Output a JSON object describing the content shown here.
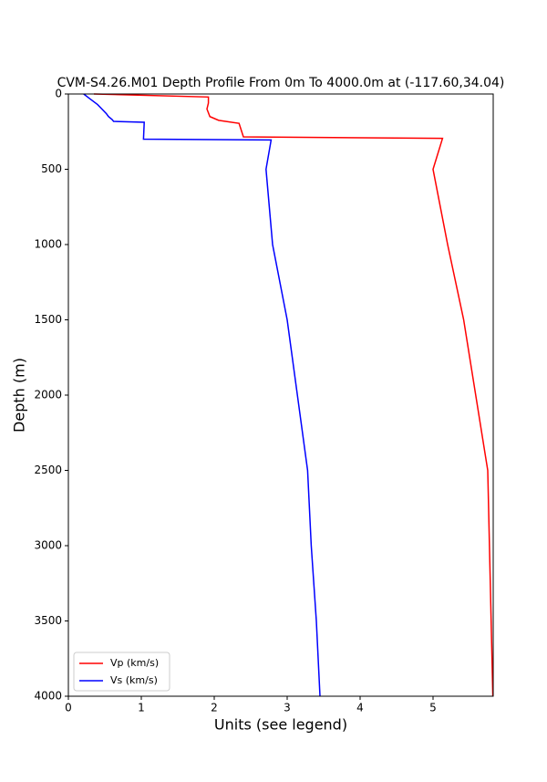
{
  "chart_data": {
    "type": "line",
    "title": "CVM-S4.26.M01 Depth Profile From 0m To 4000.0m at (-117.60,34.04)",
    "xlabel": "Units (see legend)",
    "ylabel": "Depth (m)",
    "series": [
      {
        "name": "Vp (km/s)",
        "color": "#ff0000",
        "depth": [
          0,
          20,
          60,
          100,
          150,
          175,
          195,
          285,
          295,
          500,
          1000,
          1500,
          2500,
          4000
        ],
        "values": [
          0.35,
          1.92,
          1.92,
          1.9,
          1.94,
          2.06,
          2.34,
          2.4,
          5.13,
          5.0,
          5.2,
          5.42,
          5.75,
          5.82
        ]
      },
      {
        "name": "Vs (km/s)",
        "color": "#0000ff",
        "depth": [
          0,
          30,
          70,
          100,
          130,
          150,
          170,
          182,
          188,
          300,
          305,
          500,
          1000,
          1500,
          2500,
          3000,
          3500,
          4000
        ],
        "values": [
          0.21,
          0.29,
          0.4,
          0.46,
          0.52,
          0.55,
          0.6,
          0.62,
          1.04,
          1.03,
          2.78,
          2.71,
          2.8,
          3.0,
          3.28,
          3.33,
          3.4,
          3.45
        ]
      }
    ],
    "xlim": [
      0,
      5.825
    ],
    "xticks": [
      0,
      1,
      2,
      3,
      4,
      5
    ],
    "ylim": [
      0,
      4000
    ],
    "yticks": [
      0,
      500,
      1000,
      1500,
      2000,
      2500,
      3000,
      3500,
      4000
    ],
    "y_inverted": true,
    "grid": false,
    "legend": "lower left"
  }
}
